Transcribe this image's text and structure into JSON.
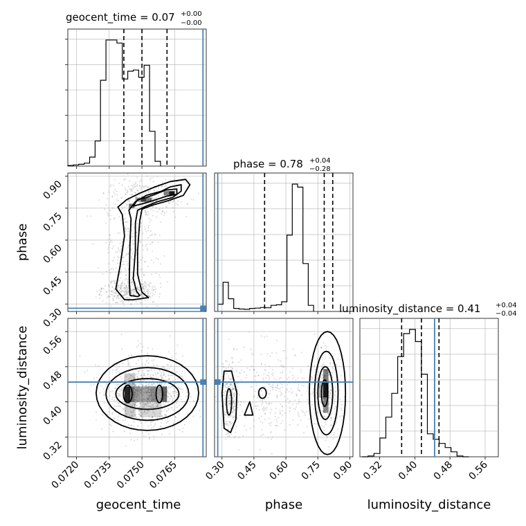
{
  "colors": {
    "truth": "#4682b4",
    "hist": "#000000",
    "grid": "#b0b0b0",
    "scatter": "#7f7f7f"
  },
  "chart_data": {
    "type": "corner",
    "grid": true,
    "parameters": [
      "geocent_time",
      "phase",
      "luminosity_distance"
    ],
    "titles": {
      "geocent_time": {
        "label": "geocent_time = 0.07",
        "sup": "+0.00",
        "sub": "−0.00"
      },
      "phase": {
        "label": "phase = 0.78",
        "sup": "+0.04",
        "sub": "−0.28"
      },
      "luminosity_distance": {
        "label": "luminosity_distance = 0.41",
        "sup": "+0.04",
        "sub": "−0.04"
      }
    },
    "axis_labels": {
      "x": [
        "geocent_time",
        "phase",
        "luminosity_distance"
      ],
      "y": [
        "phase",
        "luminosity_distance"
      ]
    },
    "ranges": {
      "geocent_time": [
        0.0716,
        0.07795
      ],
      "phase": [
        0.265,
        0.915
      ],
      "luminosity_distance": [
        0.275,
        0.59
      ]
    },
    "ticks": {
      "geocent_time": [
        "0.0720",
        "0.0735",
        "0.0750",
        "0.0765"
      ],
      "phase": [
        "0.30",
        "0.45",
        "0.60",
        "0.75",
        "0.90"
      ],
      "luminosity_distance": [
        "0.32",
        "0.40",
        "0.48",
        "0.56"
      ]
    },
    "truths": {
      "geocent_time": 0.0778,
      "phase": 0.28,
      "luminosity_distance": 0.445
    },
    "quantiles": {
      "geocent_time": [
        0.07417,
        0.075,
        0.07615
      ],
      "phase": [
        0.5,
        0.78,
        0.82
      ],
      "luminosity_distance": [
        0.37,
        0.415,
        0.455
      ]
    },
    "histograms": {
      "geocent_time": {
        "edges_start": 0.0716,
        "bin_width": 0.00025,
        "counts": [
          1,
          2,
          3,
          5,
          15,
          42,
          143,
          210,
          210,
          205,
          145,
          158,
          160,
          148,
          168,
          58,
          8
        ]
      },
      "phase": {
        "edges_start": 0.28,
        "bin_width": 0.025,
        "counts": [
          24,
          96,
          42,
          10,
          8,
          7,
          10,
          11,
          13,
          12,
          20,
          22,
          32,
          252,
          420,
          410,
          158,
          20
        ]
      },
      "luminosity_distance": {
        "edges_start": 0.28,
        "bin_width": 0.0135,
        "counts": [
          0,
          2,
          8,
          45,
          95,
          152,
          240,
          295,
          305,
          276,
          198,
          55,
          42,
          32,
          22,
          12,
          2,
          0
        ]
      }
    }
  }
}
